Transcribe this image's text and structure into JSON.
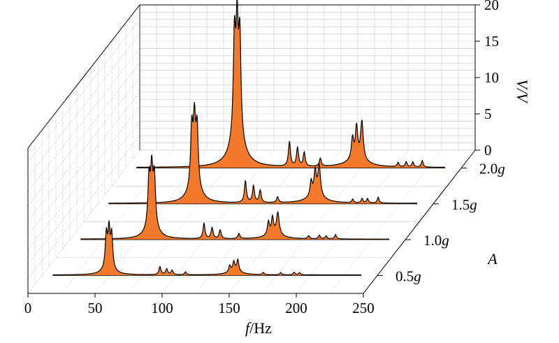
{
  "chart_data": {
    "type": "area",
    "projection": "3d-waterfall",
    "x_axis": {
      "label_var": "f",
      "label_unit": "/Hz",
      "ticks": [
        0,
        50,
        100,
        150,
        200,
        250
      ],
      "range": [
        0,
        250
      ]
    },
    "y_axis": {
      "label_var": "A",
      "categories": [
        "0.5g",
        "1.0g",
        "1.5g",
        "2.0g"
      ],
      "depth_labels": [
        {
          "num": "0.5",
          "unit": "g"
        },
        {
          "num": "1.0",
          "unit": "g"
        },
        {
          "num": "1.5",
          "unit": "g"
        },
        {
          "num": "2.0",
          "unit": "g"
        }
      ]
    },
    "z_axis": {
      "label": "V/V",
      "ticks": [
        0,
        5,
        10,
        15,
        20
      ],
      "range": [
        0,
        20
      ]
    },
    "colors": {
      "fill": "#f47a2b",
      "outline": "#000000",
      "grid": "#c8c8c8"
    },
    "series": [
      {
        "name": "0.5g",
        "peaks": [
          [
            48,
            4.4,
            0.9
          ],
          [
            50,
            4.8,
            0.9
          ],
          [
            52,
            4.5,
            0.9
          ],
          [
            49.5,
            1.2,
            4
          ],
          [
            88,
            1.1,
            0.9
          ],
          [
            93,
            0.8,
            0.9
          ],
          [
            97,
            0.6,
            0.9
          ],
          [
            107,
            0.4,
            0.8
          ],
          [
            140,
            0.9,
            0.9
          ],
          [
            143,
            1.3,
            0.9
          ],
          [
            146,
            1.6,
            0.9
          ],
          [
            144,
            0.5,
            6
          ],
          [
            165,
            0.3,
            0.8
          ],
          [
            178,
            0.3,
            0.8
          ],
          [
            188,
            0.35,
            0.8
          ],
          [
            192,
            0.3,
            0.8
          ]
        ]
      },
      {
        "name": "1.0g",
        "peaks": [
          [
            59,
            6.5,
            1.0
          ],
          [
            61,
            7.0,
            1.0
          ],
          [
            63,
            6.6,
            1.0
          ],
          [
            61,
            2.0,
            4.5
          ],
          [
            100,
            2.1,
            0.9
          ],
          [
            106,
            1.5,
            0.9
          ],
          [
            112,
            1.2,
            0.9
          ],
          [
            126,
            0.7,
            0.9
          ],
          [
            148,
            1.8,
            0.9
          ],
          [
            151,
            2.2,
            0.9
          ],
          [
            155,
            3.0,
            1.2
          ],
          [
            152,
            0.7,
            7
          ],
          [
            178,
            0.4,
            0.8
          ],
          [
            186,
            0.5,
            0.8
          ],
          [
            191,
            0.4,
            0.8
          ],
          [
            198,
            0.6,
            0.8
          ]
        ]
      },
      {
        "name": "1.5g",
        "peaks": [
          [
            70,
            7.8,
            1.0
          ],
          [
            72,
            8.3,
            1.0
          ],
          [
            74,
            7.8,
            1.0
          ],
          [
            72,
            2.5,
            5
          ],
          [
            110,
            3.0,
            0.9
          ],
          [
            116,
            2.3,
            0.9
          ],
          [
            121,
            1.7,
            0.9
          ],
          [
            134,
            0.8,
            0.9
          ],
          [
            159,
            2.1,
            1.0
          ],
          [
            162,
            3.3,
            1.0
          ],
          [
            165,
            4.2,
            1.2
          ],
          [
            162,
            0.9,
            8
          ],
          [
            190,
            0.5,
            0.8
          ],
          [
            197,
            0.6,
            0.8
          ],
          [
            201,
            0.6,
            0.8
          ],
          [
            209,
            0.8,
            0.8
          ]
        ]
      },
      {
        "name": "2.0g",
        "peaks": [
          [
            81,
            13.5,
            1.0
          ],
          [
            83,
            14.0,
            1.0
          ],
          [
            85,
            13.2,
            1.0
          ],
          [
            83,
            4.2,
            6
          ],
          [
            122,
            3.4,
            0.9
          ],
          [
            128,
            2.6,
            0.9
          ],
          [
            133,
            1.9,
            0.9
          ],
          [
            145,
            1.1,
            0.9
          ],
          [
            169,
            2.9,
            1.0
          ],
          [
            172,
            4.3,
            1.0
          ],
          [
            176,
            5.3,
            1.2
          ],
          [
            172,
            1.1,
            9
          ],
          [
            203,
            0.6,
            0.8
          ],
          [
            209,
            0.7,
            0.8
          ],
          [
            214,
            0.7,
            0.8
          ],
          [
            221,
            0.9,
            0.8
          ]
        ]
      }
    ]
  }
}
